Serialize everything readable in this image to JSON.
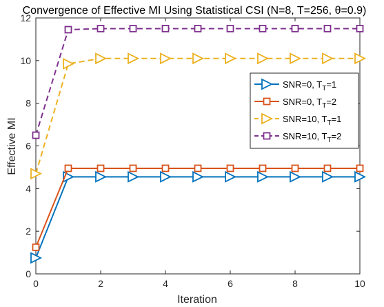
{
  "chart_data": {
    "type": "line",
    "title": "Convergence of Effective MI Using Statistical CSI (N=8, T=256, θ=0.9)",
    "xlabel": "Iteration",
    "ylabel": "Effective MI",
    "xlim": [
      0,
      10
    ],
    "ylim": [
      0,
      12
    ],
    "xticks": [
      0,
      2,
      4,
      6,
      8,
      10
    ],
    "yticks": [
      0,
      2,
      4,
      6,
      8,
      10,
      12
    ],
    "x": [
      0,
      1,
      2,
      3,
      4,
      5,
      6,
      7,
      8,
      9,
      10
    ],
    "grid": false,
    "legend_position": "right",
    "series": [
      {
        "legend_main": "SNR=0, T",
        "legend_sub": "T",
        "legend_tail": "=1",
        "color": "#0072BD",
        "marker": "triangle-right",
        "dash": "solid",
        "values": [
          0.75,
          4.55,
          4.55,
          4.55,
          4.55,
          4.55,
          4.55,
          4.55,
          4.55,
          4.55,
          4.55
        ]
      },
      {
        "legend_main": "SNR=0, T",
        "legend_sub": "T",
        "legend_tail": "=2",
        "color": "#D95319",
        "marker": "square",
        "dash": "solid",
        "values": [
          1.25,
          4.95,
          4.95,
          4.95,
          4.95,
          4.95,
          4.95,
          4.95,
          4.95,
          4.95,
          4.95
        ]
      },
      {
        "legend_main": "SNR=10, T",
        "legend_sub": "T",
        "legend_tail": "=1",
        "color": "#EDB120",
        "marker": "triangle-right",
        "dash": "dashed",
        "values": [
          4.7,
          9.85,
          10.1,
          10.1,
          10.1,
          10.1,
          10.1,
          10.1,
          10.1,
          10.1,
          10.1
        ]
      },
      {
        "legend_main": "SNR=10, T",
        "legend_sub": "T",
        "legend_tail": "=2",
        "color": "#7E2F8E",
        "marker": "square",
        "dash": "dashed",
        "values": [
          6.5,
          11.45,
          11.5,
          11.5,
          11.5,
          11.5,
          11.5,
          11.5,
          11.5,
          11.5,
          11.5
        ]
      }
    ]
  }
}
